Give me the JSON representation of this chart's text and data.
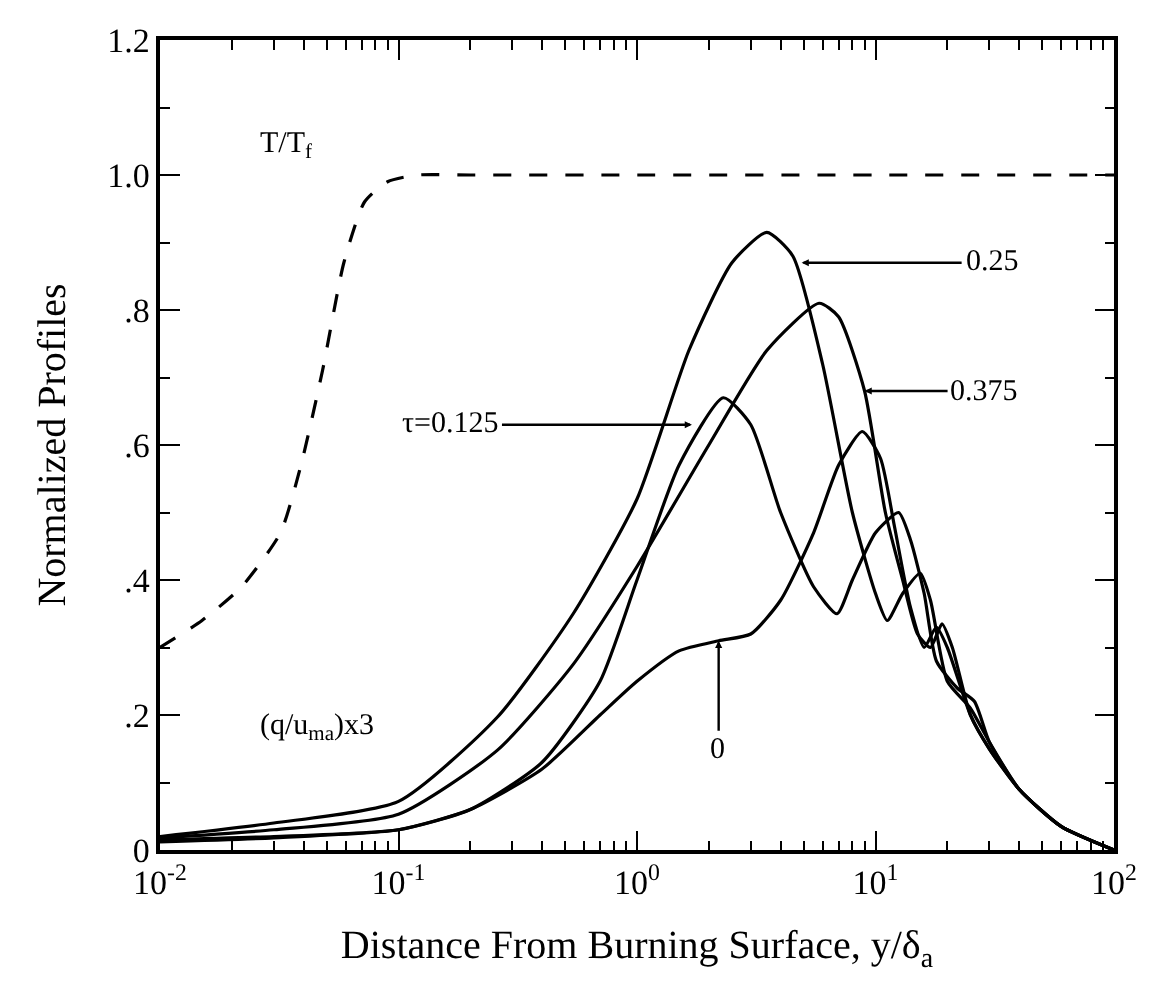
{
  "chart_data": {
    "type": "line",
    "xlabel": "Distance From Burning Surface, y/δ$_{a}$",
    "ylabel": "Normalized Profiles",
    "log": "x",
    "xlim": [
      0.01,
      100
    ],
    "xticks": [
      {
        "value": 0.01,
        "label": "10$^{-2}$"
      },
      {
        "value": 0.02,
        "label": null
      },
      {
        "value": 0.03,
        "label": null
      },
      {
        "value": 0.04,
        "label": null
      },
      {
        "value": 0.05,
        "label": null
      },
      {
        "value": 0.06,
        "label": null
      },
      {
        "value": 0.07,
        "label": null
      },
      {
        "value": 0.08,
        "label": null
      },
      {
        "value": 0.09,
        "label": null
      },
      {
        "value": 0.1,
        "label": "10$^{-1}$"
      },
      {
        "value": 0.2,
        "label": null
      },
      {
        "value": 0.3,
        "label": null
      },
      {
        "value": 0.4,
        "label": null
      },
      {
        "value": 0.5,
        "label": null
      },
      {
        "value": 0.6,
        "label": null
      },
      {
        "value": 0.7,
        "label": null
      },
      {
        "value": 0.8,
        "label": null
      },
      {
        "value": 0.9,
        "label": null
      },
      {
        "value": 1,
        "label": "10$^{0}$"
      },
      {
        "value": 2,
        "label": null
      },
      {
        "value": 3,
        "label": null
      },
      {
        "value": 4,
        "label": null
      },
      {
        "value": 5,
        "label": null
      },
      {
        "value": 6,
        "label": null
      },
      {
        "value": 7,
        "label": null
      },
      {
        "value": 8,
        "label": null
      },
      {
        "value": 9,
        "label": null
      },
      {
        "value": 10,
        "label": "10$^{1}$"
      },
      {
        "value": 20,
        "label": null
      },
      {
        "value": 30,
        "label": null
      },
      {
        "value": 40,
        "label": null
      },
      {
        "value": 50,
        "label": null
      },
      {
        "value": 60,
        "label": null
      },
      {
        "value": 70,
        "label": null
      },
      {
        "value": 80,
        "label": null
      },
      {
        "value": 90,
        "label": null
      },
      {
        "value": 100,
        "label": "10$^{2}$"
      }
    ],
    "ylim": [
      0,
      1.2
    ],
    "yticks": [
      0,
      {
        "value": 0.1,
        "label": null
      },
      {
        "value": 0.2,
        "label": ".2"
      },
      {
        "value": 0.3,
        "label": null
      },
      {
        "value": 0.4,
        "label": ".4"
      },
      {
        "value": 0.5,
        "label": null
      },
      {
        "value": 0.6,
        "label": ".6"
      },
      {
        "value": 0.7,
        "label": null
      },
      {
        "value": 0.8,
        "label": ".8"
      },
      {
        "value": 0.9,
        "label": null
      },
      {
        "value": 1.0,
        "label": "1.0"
      },
      {
        "value": 1.1,
        "label": null
      },
      {
        "value": 1.2,
        "label": "1.2"
      }
    ],
    "series": [
      {
        "color": "#000000",
        "line_style": "dashed",
        "x": [
          0.01,
          0.015,
          0.022,
          0.032,
          0.039,
          0.048,
          0.059,
          0.072,
          0.09,
          0.12,
          0.2,
          1,
          10,
          100
        ],
        "values": [
          0.3,
          0.34,
          0.39,
          0.47,
          0.57,
          0.71,
          0.87,
          0.96,
          0.99,
          1.0,
          1.0,
          1.0,
          1.0,
          1.0
        ]
      },
      {
        "color": "#000000",
        "line_style": "solid",
        "x": [
          0.01,
          0.03,
          0.1,
          0.2,
          0.4,
          0.7,
          1,
          1.5,
          2.2,
          3,
          4,
          5.5,
          7,
          8.8,
          10.5,
          12,
          14,
          16,
          18,
          20,
          25,
          30,
          40,
          60,
          100
        ],
        "values": [
          0.012,
          0.018,
          0.03,
          0.06,
          0.12,
          0.2,
          0.25,
          0.295,
          0.31,
          0.32,
          0.37,
          0.47,
          0.57,
          0.62,
          0.58,
          0.48,
          0.36,
          0.3,
          0.33,
          0.3,
          0.2,
          0.15,
          0.09,
          0.035,
          0.0
        ]
      },
      {
        "color": "#000000",
        "line_style": "solid",
        "x": [
          0.01,
          0.03,
          0.1,
          0.2,
          0.4,
          0.7,
          1,
          1.5,
          2.3,
          3,
          4,
          5.5,
          6.9,
          8,
          10,
          12.5,
          14,
          16,
          18,
          22,
          26,
          30,
          40,
          60,
          100
        ],
        "values": [
          0.015,
          0.02,
          0.03,
          0.06,
          0.13,
          0.25,
          0.4,
          0.57,
          0.67,
          0.63,
          0.5,
          0.39,
          0.35,
          0.4,
          0.47,
          0.5,
          0.46,
          0.38,
          0.28,
          0.24,
          0.22,
          0.16,
          0.09,
          0.035,
          0.0
        ]
      },
      {
        "color": "#000000",
        "line_style": "solid",
        "x": [
          0.01,
          0.03,
          0.1,
          0.26,
          0.54,
          1,
          1.65,
          2.5,
          3.5,
          4.5,
          6,
          8,
          10,
          11.2,
          13,
          15.4,
          17,
          20,
          25,
          30,
          40,
          60,
          100
        ],
        "values": [
          0.02,
          0.04,
          0.072,
          0.197,
          0.35,
          0.52,
          0.74,
          0.87,
          0.915,
          0.88,
          0.72,
          0.5,
          0.38,
          0.34,
          0.38,
          0.41,
          0.37,
          0.25,
          0.21,
          0.16,
          0.09,
          0.035,
          0.0
        ]
      },
      {
        "color": "#000000",
        "line_style": "solid",
        "x": [
          0.01,
          0.03,
          0.1,
          0.26,
          0.54,
          1,
          2,
          3.5,
          5.8,
          7,
          9,
          11,
          13,
          15,
          17,
          19,
          21,
          25,
          30,
          40,
          60,
          100
        ],
        "values": [
          0.018,
          0.03,
          0.053,
          0.148,
          0.275,
          0.42,
          0.6,
          0.74,
          0.81,
          0.79,
          0.68,
          0.5,
          0.4,
          0.32,
          0.3,
          0.335,
          0.3,
          0.2,
          0.15,
          0.09,
          0.035,
          0.0
        ]
      }
    ],
    "annotations": [
      "T/T$_{f}$",
      "(q/u$_{ma}$)x3",
      {
        "text": "τ=0.125",
        "x": 1.7,
        "y": 0.63
      },
      {
        "text": "0.25",
        "x": 4.9,
        "y": 0.87
      },
      {
        "text": "0.375",
        "x": 9,
        "y": 0.68
      },
      {
        "text": "0",
        "x": 2.2,
        "y": 0.31
      }
    ]
  }
}
